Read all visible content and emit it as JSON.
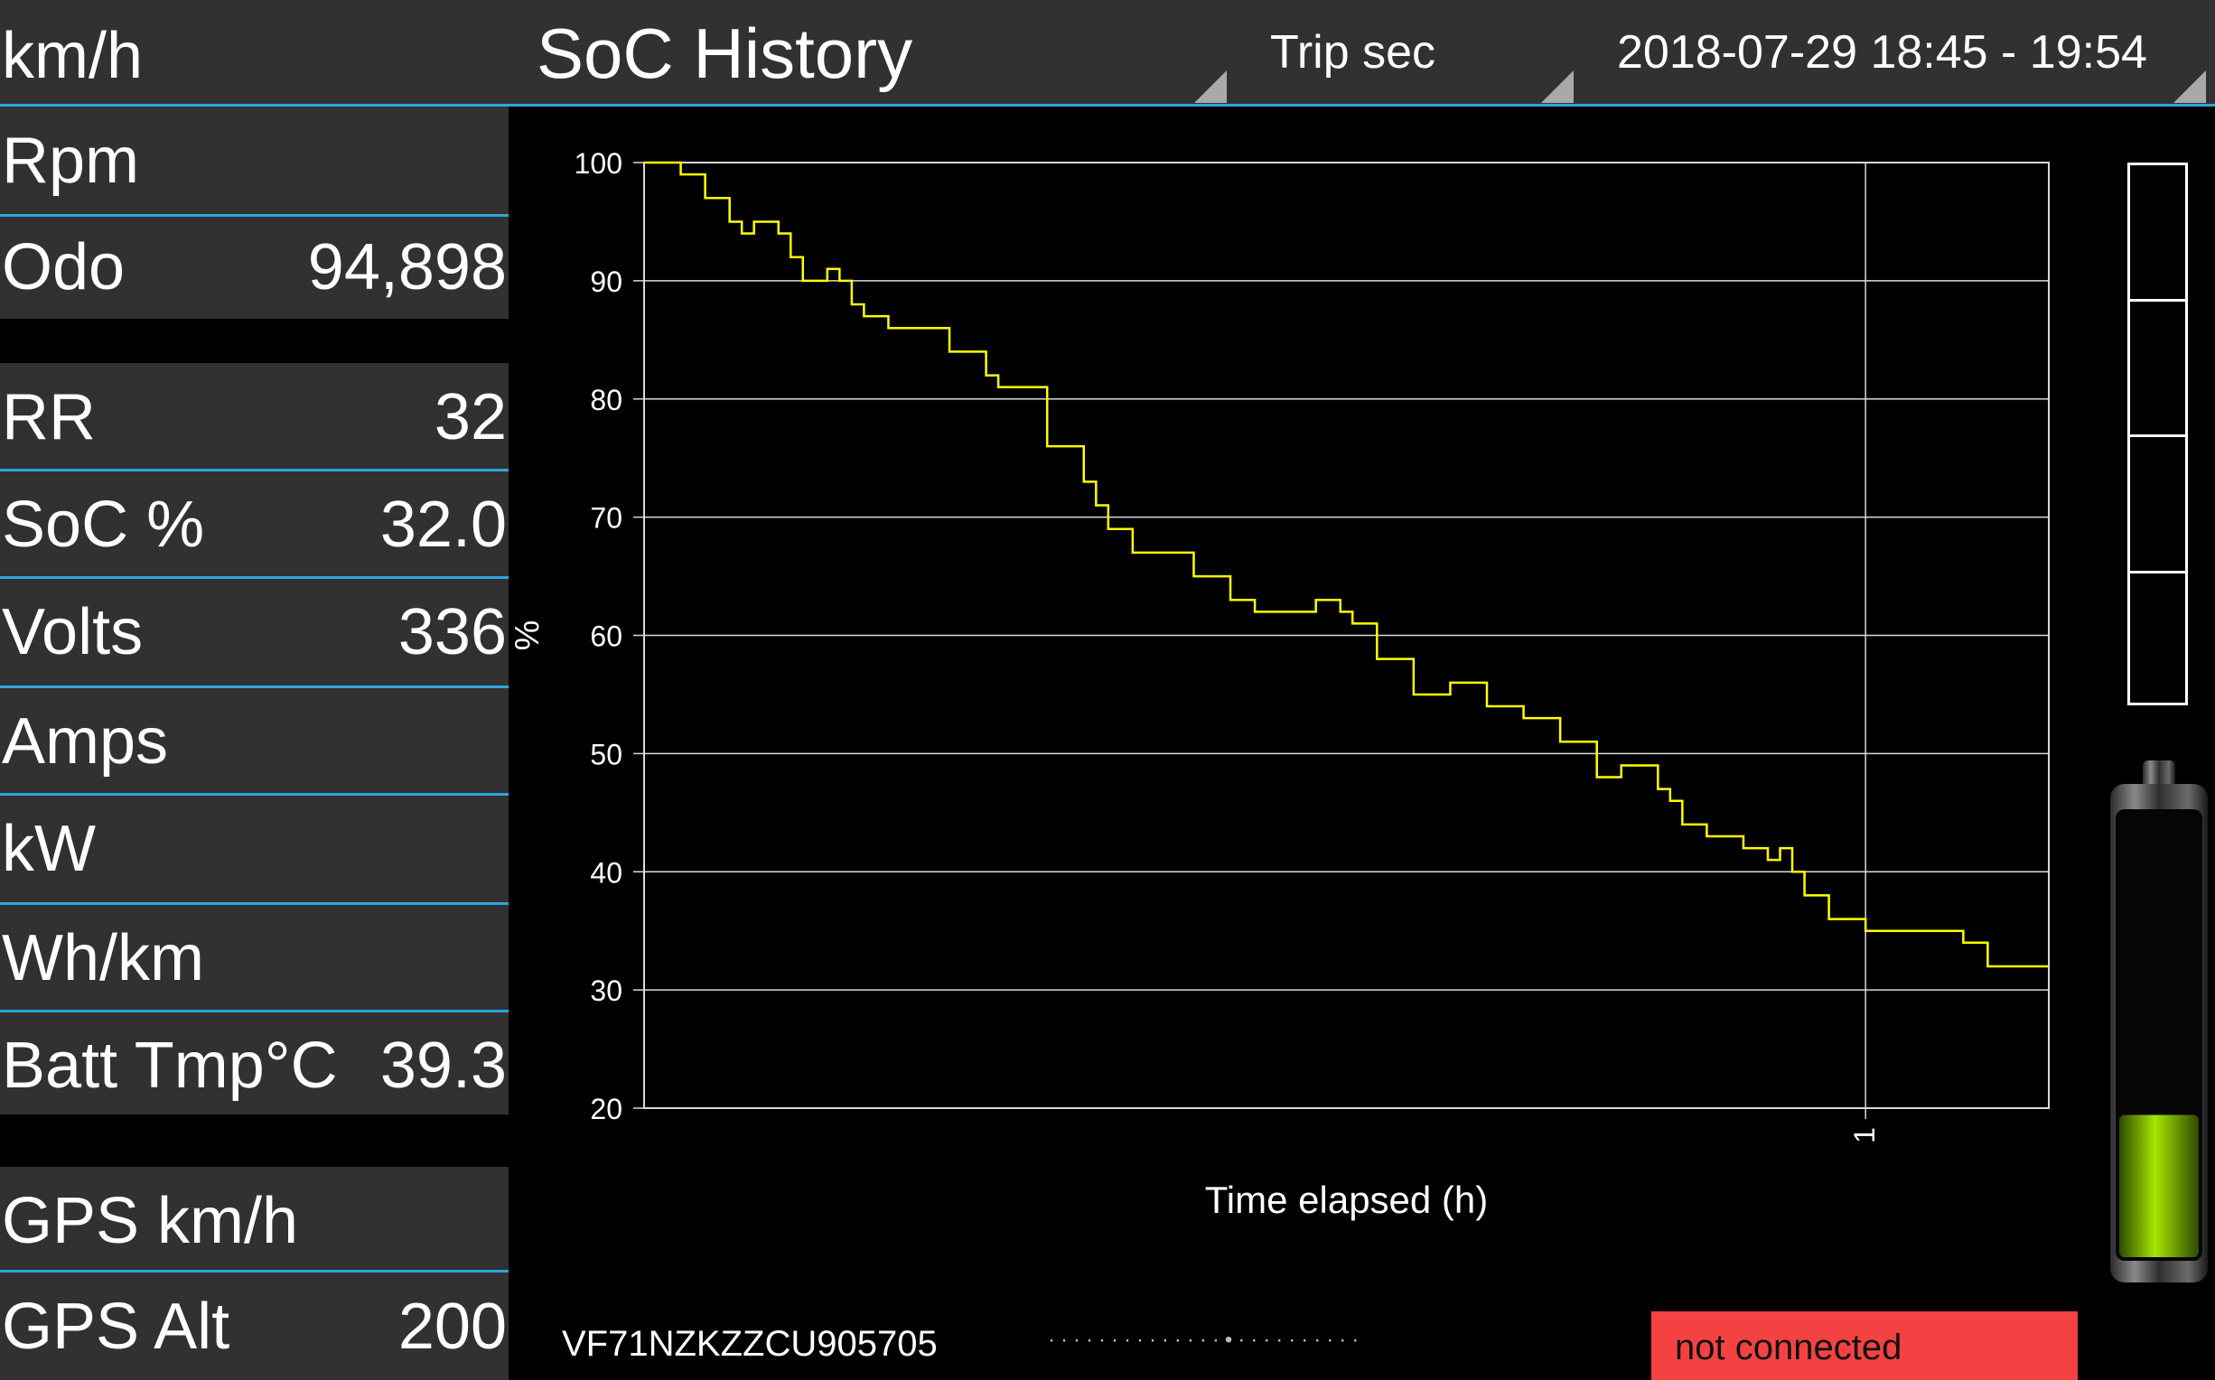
{
  "header": {
    "speed_label": "km/h",
    "title": "SoC History",
    "trip_label": "Trip sec",
    "date_range": "2018-07-29 18:45 - 19:54"
  },
  "metrics_group1": [
    {
      "label": "Rpm",
      "value": ""
    },
    {
      "label": "Odo",
      "value": "94,898"
    }
  ],
  "metrics_group2": [
    {
      "label": "RR",
      "value": "32"
    },
    {
      "label": "SoC %",
      "value": "32.0"
    },
    {
      "label": "Volts",
      "value": "336"
    },
    {
      "label": "Amps",
      "value": ""
    },
    {
      "label": "kW",
      "value": ""
    },
    {
      "label": "Wh/km",
      "value": ""
    },
    {
      "label": "Batt Tmp°C",
      "value": "39.3"
    }
  ],
  "metrics_group3": [
    {
      "label": "GPS km/h",
      "value": ""
    },
    {
      "label": "GPS Alt",
      "value": "200"
    }
  ],
  "battery": {
    "level": 0.32,
    "fill_color": "#7ec800"
  },
  "footer": {
    "vin": "VF71NZKZZCU905705",
    "page_dots": "··············•··········",
    "status": "not connected",
    "status_color": "#f44242"
  },
  "chart_data": {
    "type": "line",
    "title": "",
    "xlabel": "Time elapsed (h)",
    "ylabel": "%",
    "xlim": [
      0,
      1.15
    ],
    "ylim": [
      20,
      100
    ],
    "yticks": [
      100,
      90,
      80,
      70,
      60,
      50,
      40,
      30,
      20
    ],
    "xticks": [
      1
    ],
    "grid": true,
    "series": [
      {
        "color": "#ffff00",
        "x": [
          0,
          0.03,
          0.05,
          0.07,
          0.08,
          0.09,
          0.1,
          0.11,
          0.12,
          0.13,
          0.15,
          0.16,
          0.17,
          0.18,
          0.2,
          0.25,
          0.28,
          0.29,
          0.33,
          0.36,
          0.37,
          0.38,
          0.4,
          0.45,
          0.48,
          0.5,
          0.52,
          0.55,
          0.56,
          0.57,
          0.58,
          0.6,
          0.63,
          0.66,
          0.69,
          0.72,
          0.75,
          0.78,
          0.8,
          0.83,
          0.84,
          0.85,
          0.87,
          0.9,
          0.92,
          0.93,
          0.94,
          0.95,
          0.97,
          1.0,
          1.05,
          1.08,
          1.1,
          1.15
        ],
        "y": [
          100,
          99,
          97,
          95,
          94,
          95,
          95,
          94,
          92,
          90,
          91,
          90,
          88,
          87,
          86,
          84,
          82,
          81,
          76,
          73,
          71,
          69,
          67,
          65,
          63,
          62,
          62,
          63,
          63,
          62,
          61,
          58,
          55,
          56,
          54,
          53,
          51,
          48,
          49,
          47,
          46,
          44,
          43,
          42,
          41,
          42,
          40,
          38,
          36,
          35,
          35,
          34,
          32,
          32
        ]
      }
    ]
  }
}
